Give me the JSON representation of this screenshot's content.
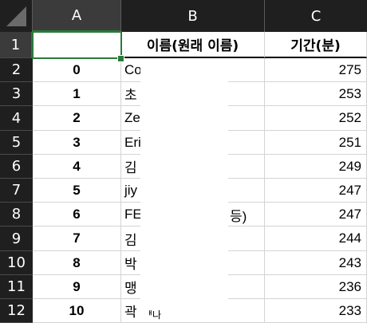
{
  "columns": [
    {
      "letter": "A"
    },
    {
      "letter": "B"
    },
    {
      "letter": "C"
    }
  ],
  "header_row": {
    "a": "",
    "b": "이름(원래 이름)",
    "c": "기간(분)"
  },
  "rows": [
    {
      "num": "2",
      "a": "0",
      "b": "Co",
      "c": "275"
    },
    {
      "num": "3",
      "a": "1",
      "b": "초",
      "c": "253"
    },
    {
      "num": "4",
      "a": "2",
      "b": "Ze",
      "c": "252"
    },
    {
      "num": "5",
      "a": "3",
      "b": "Eri",
      "c": "251"
    },
    {
      "num": "6",
      "a": "4",
      "b": "김",
      "c": "249"
    },
    {
      "num": "7",
      "a": "5",
      "b": "jiy",
      "c": "247"
    },
    {
      "num": "8",
      "a": "6",
      "b": "FE",
      "c": "247"
    },
    {
      "num": "9",
      "a": "7",
      "b": "김",
      "c": "244"
    },
    {
      "num": "10",
      "a": "8",
      "b": "박",
      "c": "243"
    },
    {
      "num": "11",
      "a": "9",
      "b": "맹",
      "c": "236"
    },
    {
      "num": "12",
      "a": "10",
      "b": "곽",
      "c": "233"
    }
  ],
  "header_row_num": "1",
  "partial_fragments": {
    "row8_tail": "등)",
    "row12_tail": "ᅢ나"
  },
  "colors": {
    "header_bg": "#1f1f1f",
    "active_header": "#3b3b3b",
    "selection": "#2a7a3a"
  }
}
